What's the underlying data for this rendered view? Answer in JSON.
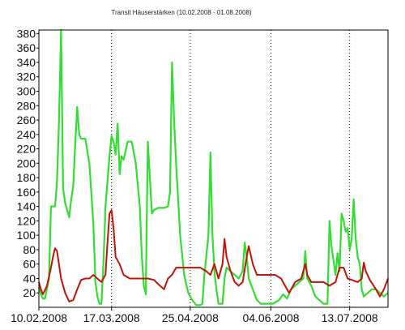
{
  "chart_data": {
    "type": "line",
    "title": "Transit Häuserstärken (10.02.2008 - 01.08.2008)",
    "xlabel": "",
    "ylabel": "",
    "x_range": [
      "10.02.2008",
      "01.08.2008"
    ],
    "ylim": [
      0,
      385
    ],
    "y_ticks": [
      20,
      40,
      60,
      80,
      100,
      120,
      140,
      160,
      180,
      200,
      220,
      240,
      260,
      280,
      300,
      320,
      340,
      360,
      380
    ],
    "x_tick_labels": [
      "10.02.2008",
      "17.03.2008",
      "25.04.2008",
      "04.06.2008",
      "13.07.2008"
    ],
    "grid": {
      "vertical": true,
      "horizontal": false,
      "style": "dotted"
    },
    "legend": "none",
    "colors": {
      "green": "#33dd33",
      "red": "#c0140a"
    },
    "series": [
      {
        "color": "#33dd33",
        "points": [
          [
            "10.02.2008",
            28
          ],
          [
            "11.02.2008",
            18
          ],
          [
            "12.02.2008",
            12
          ],
          [
            "13.02.2008",
            12
          ],
          [
            "15.02.2008",
            40
          ],
          [
            "16.02.2008",
            140
          ],
          [
            "18.02.2008",
            140
          ],
          [
            "19.02.2008",
            175
          ],
          [
            "20.02.2008",
            262
          ],
          [
            "21.02.2008",
            385
          ],
          [
            "22.02.2008",
            165
          ],
          [
            "23.02.2008",
            145
          ],
          [
            "25.02.2008",
            125
          ],
          [
            "26.02.2008",
            150
          ],
          [
            "27.02.2008",
            168
          ],
          [
            "28.02.2008",
            225
          ],
          [
            "29.02.2008",
            278
          ],
          [
            "01.03.2008",
            240
          ],
          [
            "02.03.2008",
            234
          ],
          [
            "04.03.2008",
            234
          ],
          [
            "06.03.2008",
            200
          ],
          [
            "08.03.2008",
            115
          ],
          [
            "09.03.2008",
            35
          ],
          [
            "10.03.2008",
            15
          ],
          [
            "11.03.2008",
            5
          ],
          [
            "12.03.2008",
            5
          ],
          [
            "13.03.2008",
            60
          ],
          [
            "14.03.2008",
            140
          ],
          [
            "16.03.2008",
            210
          ],
          [
            "17.03.2008",
            238
          ],
          [
            "18.03.2008",
            230
          ],
          [
            "19.03.2008",
            212
          ],
          [
            "20.03.2008",
            255
          ],
          [
            "21.03.2008",
            185
          ],
          [
            "22.03.2008",
            210
          ],
          [
            "23.03.2008",
            205
          ],
          [
            "25.03.2008",
            230
          ],
          [
            "27.03.2008",
            230
          ],
          [
            "29.03.2008",
            200
          ],
          [
            "31.03.2008",
            140
          ],
          [
            "01.04.2008",
            70
          ],
          [
            "02.04.2008",
            30
          ],
          [
            "03.04.2008",
            18
          ],
          [
            "04.04.2008",
            230
          ],
          [
            "05.04.2008",
            180
          ],
          [
            "06.04.2008",
            130
          ],
          [
            "07.04.2008",
            135
          ],
          [
            "09.04.2008",
            138
          ],
          [
            "12.04.2008",
            138
          ],
          [
            "14.04.2008",
            140
          ],
          [
            "15.04.2008",
            160
          ],
          [
            "16.04.2008",
            340
          ],
          [
            "17.04.2008",
            260
          ],
          [
            "18.04.2008",
            200
          ],
          [
            "20.04.2008",
            100
          ],
          [
            "22.04.2008",
            45
          ],
          [
            "24.04.2008",
            20
          ],
          [
            "26.04.2008",
            10
          ],
          [
            "28.04.2008",
            3
          ],
          [
            "30.04.2008",
            3
          ],
          [
            "01.05.2008",
            5
          ],
          [
            "02.05.2008",
            45
          ],
          [
            "04.05.2008",
            100
          ],
          [
            "05.05.2008",
            215
          ],
          [
            "06.05.2008",
            100
          ],
          [
            "07.05.2008",
            50
          ],
          [
            "08.05.2008",
            25
          ],
          [
            "09.05.2008",
            5
          ],
          [
            "11.05.2008",
            5
          ],
          [
            "12.05.2008",
            40
          ],
          [
            "13.05.2008",
            55
          ],
          [
            "15.05.2008",
            50
          ],
          [
            "17.05.2008",
            45
          ],
          [
            "19.05.2008",
            40
          ],
          [
            "21.05.2008",
            50
          ],
          [
            "22.05.2008",
            90
          ],
          [
            "23.05.2008",
            70
          ],
          [
            "24.05.2008",
            40
          ],
          [
            "26.05.2008",
            25
          ],
          [
            "28.05.2008",
            10
          ],
          [
            "30.05.2008",
            5
          ],
          [
            "01.06.2008",
            5
          ],
          [
            "05.06.2008",
            5
          ],
          [
            "08.06.2008",
            10
          ],
          [
            "10.06.2008",
            18
          ],
          [
            "12.06.2008",
            12
          ],
          [
            "14.06.2008",
            25
          ],
          [
            "16.06.2008",
            30
          ],
          [
            "18.06.2008",
            35
          ],
          [
            "20.06.2008",
            40
          ],
          [
            "21.06.2008",
            78
          ],
          [
            "22.06.2008",
            40
          ],
          [
            "24.06.2008",
            30
          ],
          [
            "26.06.2008",
            15
          ],
          [
            "28.06.2008",
            10
          ],
          [
            "30.06.2008",
            5
          ],
          [
            "02.07.2008",
            5
          ],
          [
            "03.07.2008",
            120
          ],
          [
            "04.07.2008",
            85
          ],
          [
            "05.07.2008",
            65
          ],
          [
            "06.07.2008",
            45
          ],
          [
            "07.07.2008",
            75
          ],
          [
            "08.07.2008",
            50
          ],
          [
            "09.07.2008",
            130
          ],
          [
            "10.07.2008",
            120
          ],
          [
            "11.07.2008",
            105
          ],
          [
            "12.07.2008",
            110
          ],
          [
            "13.07.2008",
            80
          ],
          [
            "14.07.2008",
            95
          ],
          [
            "15.07.2008",
            150
          ],
          [
            "16.07.2008",
            95
          ],
          [
            "17.07.2008",
            70
          ],
          [
            "18.07.2008",
            60
          ],
          [
            "19.07.2008",
            25
          ],
          [
            "20.07.2008",
            15
          ],
          [
            "22.07.2008",
            20
          ],
          [
            "24.07.2008",
            25
          ],
          [
            "26.07.2008",
            25
          ],
          [
            "28.07.2008",
            20
          ],
          [
            "30.07.2008",
            15
          ],
          [
            "01.08.2008",
            20
          ]
        ]
      },
      {
        "color": "#c0140a",
        "points": [
          [
            "10.02.2008",
            35
          ],
          [
            "11.02.2008",
            25
          ],
          [
            "12.02.2008",
            18
          ],
          [
            "14.02.2008",
            30
          ],
          [
            "16.02.2008",
            55
          ],
          [
            "17.02.2008",
            70
          ],
          [
            "18.02.2008",
            82
          ],
          [
            "19.02.2008",
            78
          ],
          [
            "21.02.2008",
            40
          ],
          [
            "23.02.2008",
            20
          ],
          [
            "25.02.2008",
            8
          ],
          [
            "27.02.2008",
            10
          ],
          [
            "29.02.2008",
            25
          ],
          [
            "02.03.2008",
            38
          ],
          [
            "04.03.2008",
            40
          ],
          [
            "06.03.2008",
            40
          ],
          [
            "08.03.2008",
            45
          ],
          [
            "10.03.2008",
            40
          ],
          [
            "12.03.2008",
            35
          ],
          [
            "14.03.2008",
            45
          ],
          [
            "15.03.2008",
            90
          ],
          [
            "16.03.2008",
            130
          ],
          [
            "17.03.2008",
            135
          ],
          [
            "18.03.2008",
            110
          ],
          [
            "19.03.2008",
            70
          ],
          [
            "21.03.2008",
            60
          ],
          [
            "23.03.2008",
            45
          ],
          [
            "26.03.2008",
            40
          ],
          [
            "29.03.2008",
            40
          ],
          [
            "01.04.2008",
            40
          ],
          [
            "04.04.2008",
            40
          ],
          [
            "07.04.2008",
            38
          ],
          [
            "10.04.2008",
            30
          ],
          [
            "12.04.2008",
            25
          ],
          [
            "14.04.2008",
            40
          ],
          [
            "16.04.2008",
            45
          ],
          [
            "18.04.2008",
            55
          ],
          [
            "21.04.2008",
            55
          ],
          [
            "24.04.2008",
            55
          ],
          [
            "27.04.2008",
            55
          ],
          [
            "30.04.2008",
            55
          ],
          [
            "03.05.2008",
            50
          ],
          [
            "05.05.2008",
            45
          ],
          [
            "07.05.2008",
            60
          ],
          [
            "09.05.2008",
            40
          ],
          [
            "11.05.2008",
            60
          ],
          [
            "12.05.2008",
            95
          ],
          [
            "13.05.2008",
            70
          ],
          [
            "15.05.2008",
            50
          ],
          [
            "17.05.2008",
            35
          ],
          [
            "19.05.2008",
            30
          ],
          [
            "21.05.2008",
            35
          ],
          [
            "23.05.2008",
            70
          ],
          [
            "24.05.2008",
            85
          ],
          [
            "26.05.2008",
            60
          ],
          [
            "28.05.2008",
            45
          ],
          [
            "31.05.2008",
            45
          ],
          [
            "03.06.2008",
            45
          ],
          [
            "06.06.2008",
            45
          ],
          [
            "09.06.2008",
            40
          ],
          [
            "11.06.2008",
            30
          ],
          [
            "13.06.2008",
            20
          ],
          [
            "16.06.2008",
            35
          ],
          [
            "19.06.2008",
            40
          ],
          [
            "21.06.2008",
            60
          ],
          [
            "22.06.2008",
            45
          ],
          [
            "24.06.2008",
            35
          ],
          [
            "27.06.2008",
            35
          ],
          [
            "30.06.2008",
            35
          ],
          [
            "03.07.2008",
            30
          ],
          [
            "06.07.2008",
            35
          ],
          [
            "08.07.2008",
            55
          ],
          [
            "10.07.2008",
            55
          ],
          [
            "12.07.2008",
            40
          ],
          [
            "14.07.2008",
            38
          ],
          [
            "17.07.2008",
            35
          ],
          [
            "19.07.2008",
            40
          ],
          [
            "20.07.2008",
            62
          ],
          [
            "21.07.2008",
            50
          ],
          [
            "23.07.2008",
            38
          ],
          [
            "26.07.2008",
            25
          ],
          [
            "28.07.2008",
            15
          ],
          [
            "30.07.2008",
            25
          ],
          [
            "01.08.2008",
            40
          ]
        ]
      }
    ]
  }
}
